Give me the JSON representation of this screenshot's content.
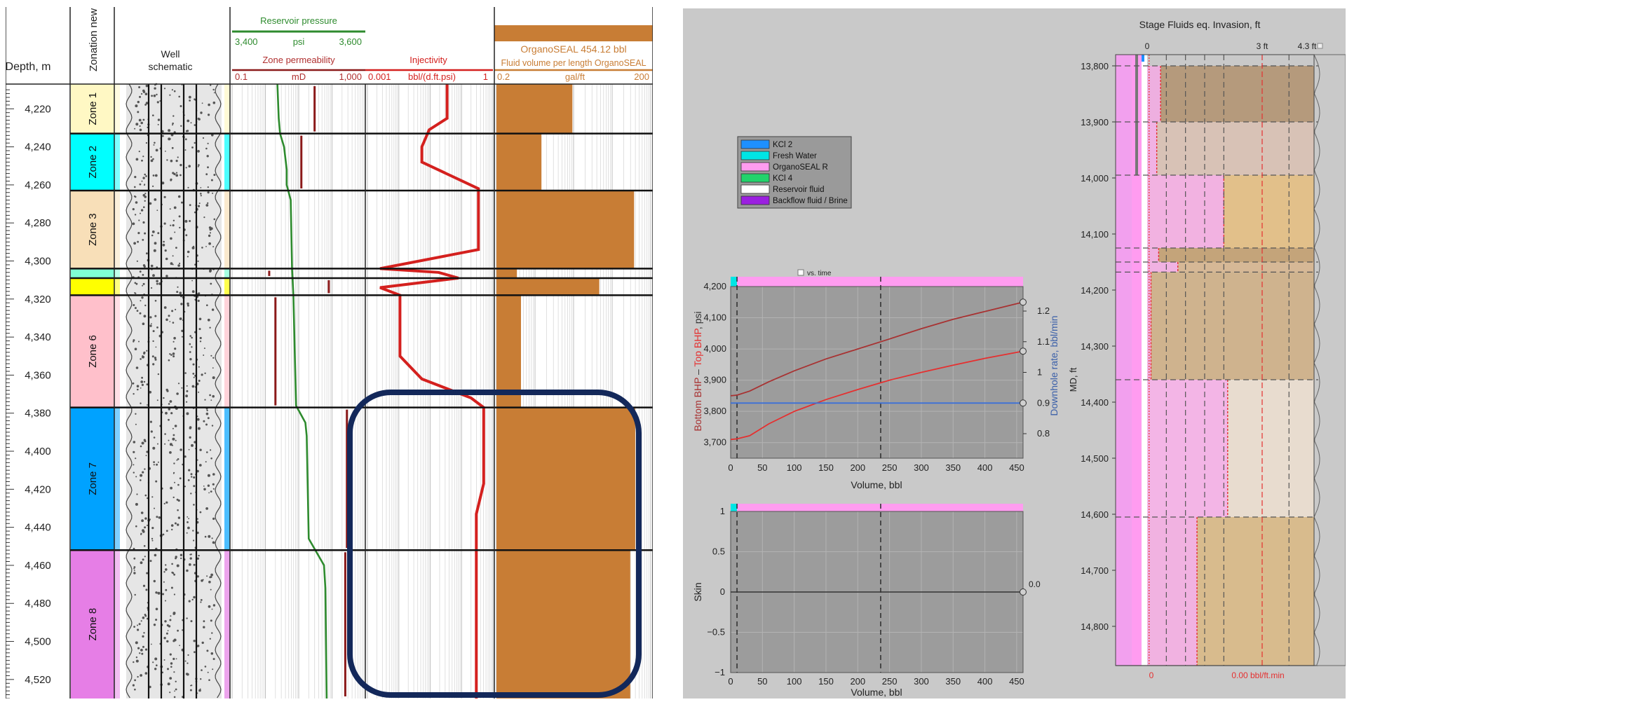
{
  "colors": {
    "green_curve": "#2e8b2e",
    "red_curve": "#d4201e",
    "dark_red": "#8b1a1a",
    "brown_fill": "#c87d35",
    "navy_highlight": "#13285a",
    "legend_kcl2": "#1e90ff",
    "legend_fresh_water": "#00e5e5",
    "legend_organoseal": "#ff9cf0",
    "legend_kcl4": "#22d36b",
    "legend_reservoir": "#ffffff",
    "legend_backflow": "#9b1fe0"
  },
  "well_log": {
    "headers": {
      "depth": "Depth, m",
      "zonation": "Zonation new",
      "schematic": "Well schematic",
      "pressure_title": "Reservoir pressure",
      "pressure_min": "3,400",
      "pressure_unit": "psi",
      "pressure_max": "3,600",
      "perm_title": "Zone permeability",
      "perm_min": "0.1",
      "perm_unit": "mD",
      "perm_max": "1,000",
      "inj_title": "Injectivity",
      "inj_min": "0.001",
      "inj_unit": "bbl/(d.ft.psi)",
      "inj_max": "1",
      "fluid_banner": "OrganoSEAL 454.12 bbl",
      "fluid_title": "Fluid volume per length OrganoSEAL",
      "fluid_min": "0.2",
      "fluid_unit": "gal/ft",
      "fluid_max": "200"
    },
    "depth_labels": [
      "4,220",
      "4,240",
      "4,260",
      "4,280",
      "4,300",
      "4,320",
      "4,340",
      "4,360",
      "4,380",
      "4,400",
      "4,420",
      "4,440",
      "4,460",
      "4,480",
      "4,500",
      "4,520"
    ],
    "zones": [
      {
        "label": "Zone 1",
        "top": 4207,
        "bottom": 4233,
        "color": "#fff8c4"
      },
      {
        "label": "Zone 2",
        "top": 4233,
        "bottom": 4263,
        "color": "#00ffff"
      },
      {
        "label": "Zone 3",
        "top": 4263,
        "bottom": 4304,
        "color": "#f8dfb8"
      },
      {
        "label": "",
        "top": 4304,
        "bottom": 4309,
        "color": "#7fffd4"
      },
      {
        "label": "",
        "top": 4309,
        "bottom": 4318,
        "color": "#ffff00"
      },
      {
        "label": "Zone 6",
        "top": 4318,
        "bottom": 4377,
        "color": "#ffc0cb"
      },
      {
        "label": "Zone 7",
        "top": 4377,
        "bottom": 4452,
        "color": "#00a2ff"
      },
      {
        "label": "Zone 8",
        "top": 4452,
        "bottom": 4530,
        "color": "#e67ee6"
      }
    ],
    "injectivity_profile": [
      {
        "depth": 4207,
        "value": 0.08
      },
      {
        "depth": 4225,
        "value": 0.08
      },
      {
        "depth": 4231,
        "value": 0.03
      },
      {
        "depth": 4240,
        "value": 0.02
      },
      {
        "depth": 4248,
        "value": 0.02
      },
      {
        "depth": 4262,
        "value": 0.45
      },
      {
        "depth": 4294,
        "value": 0.45
      },
      {
        "depth": 4304,
        "value": 0.002
      },
      {
        "depth": 4306,
        "value": 0.05
      },
      {
        "depth": 4309,
        "value": 0.15
      },
      {
        "depth": 4314,
        "value": 0.002
      },
      {
        "depth": 4318,
        "value": 0.006
      },
      {
        "depth": 4350,
        "value": 0.006
      },
      {
        "depth": 4362,
        "value": 0.02
      },
      {
        "depth": 4372,
        "value": 0.3
      },
      {
        "depth": 4377,
        "value": 0.6
      },
      {
        "depth": 4417,
        "value": 0.6
      },
      {
        "depth": 4433,
        "value": 0.4
      },
      {
        "depth": 4530,
        "value": 0.4
      }
    ],
    "pressure_profile": [
      {
        "depth": 4207,
        "value": 3468
      },
      {
        "depth": 4225,
        "value": 3470
      },
      {
        "depth": 4233,
        "value": 3472
      },
      {
        "depth": 4240,
        "value": 3478
      },
      {
        "depth": 4252,
        "value": 3482
      },
      {
        "depth": 4260,
        "value": 3482
      },
      {
        "depth": 4268,
        "value": 3488
      },
      {
        "depth": 4304,
        "value": 3490
      },
      {
        "depth": 4318,
        "value": 3492
      },
      {
        "depth": 4376,
        "value": 3496
      },
      {
        "depth": 4385,
        "value": 3510
      },
      {
        "depth": 4392,
        "value": 3512
      },
      {
        "depth": 4446,
        "value": 3515
      },
      {
        "depth": 4460,
        "value": 3538
      },
      {
        "depth": 4472,
        "value": 3540
      },
      {
        "depth": 4530,
        "value": 3542
      }
    ],
    "permeability_bars": [
      {
        "top": 4207,
        "bottom": 4233,
        "value": 30
      },
      {
        "top": 4233,
        "bottom": 4263,
        "value": 12
      },
      {
        "top": 4304,
        "bottom": 4309,
        "value": 1.3
      },
      {
        "top": 4309,
        "bottom": 4318,
        "value": 80
      },
      {
        "top": 4318,
        "bottom": 4377,
        "value": 2
      },
      {
        "top": 4377,
        "bottom": 4452,
        "value": 280
      },
      {
        "top": 4452,
        "bottom": 4530,
        "value": 250
      }
    ],
    "fluid_volume_blocks": [
      {
        "top": 4207,
        "bottom": 4233,
        "value": 6
      },
      {
        "top": 4233,
        "bottom": 4263,
        "value": 1.5
      },
      {
        "top": 4263,
        "bottom": 4304,
        "value": 95
      },
      {
        "top": 4304,
        "bottom": 4309,
        "value": 0.5
      },
      {
        "top": 4309,
        "bottom": 4318,
        "value": 20
      },
      {
        "top": 4318,
        "bottom": 4377,
        "value": 0.6
      },
      {
        "top": 4377,
        "bottom": 4452,
        "value": 100
      },
      {
        "top": 4452,
        "bottom": 4530,
        "value": 80
      }
    ]
  },
  "legend": [
    {
      "label": "KCl 2",
      "color": "#1e90ff"
    },
    {
      "label": "Fresh Water",
      "color": "#00e5e5"
    },
    {
      "label": "OrganoSEAL R",
      "color": "#ff9cf0"
    },
    {
      "label": "KCl 4",
      "color": "#22d36b"
    },
    {
      "label": "Reservoir fluid",
      "color": "#ffffff"
    },
    {
      "label": "Backflow fluid / Brine",
      "color": "#9b1fe0"
    }
  ],
  "bhp_plot": {
    "checkbox_label": "vs. time",
    "xlabel": "Volume, bbl",
    "ylabel_part1": "Bottom BHP",
    "ylabel_sep": " – ",
    "ylabel_part2": "Top BHP",
    "ylabel_unit": ", psi",
    "y2label": "Downhole rate, bbl/min",
    "x_ticks": [
      "0",
      "50",
      "100",
      "150",
      "200",
      "250",
      "300",
      "350",
      "400",
      "450"
    ],
    "y_ticks": [
      "3,700",
      "3,800",
      "3,900",
      "4,000",
      "4,100",
      "4,200"
    ],
    "y2_ticks": [
      "0.8",
      "0.9",
      "1",
      "1.1",
      "1.2"
    ]
  },
  "skin_plot": {
    "xlabel": "Volume, bbl",
    "ylabel": "Skin",
    "x_ticks": [
      "0",
      "50",
      "100",
      "150",
      "200",
      "250",
      "300",
      "350",
      "400",
      "450"
    ],
    "y_ticks": [
      "1",
      "0.5",
      "0",
      "−0.5",
      "−1"
    ],
    "end_value": "0.0"
  },
  "chart_data": [
    {
      "type": "line",
      "xlabel": "Volume, bbl",
      "ylabel": "Bottom BHP – Top BHP, psi",
      "xlim": [
        0,
        460
      ],
      "ylim": [
        3650,
        4200
      ],
      "y2lim": [
        0.72,
        1.28
      ],
      "series": [
        {
          "name": "Bottom BHP",
          "axis": "left",
          "x": [
            0,
            10,
            30,
            60,
            100,
            150,
            200,
            250,
            300,
            350,
            400,
            460
          ],
          "y": [
            3850,
            3852,
            3865,
            3895,
            3930,
            3968,
            4000,
            4032,
            4065,
            4095,
            4120,
            4150
          ]
        },
        {
          "name": "Top BHP",
          "axis": "left",
          "x": [
            0,
            10,
            30,
            60,
            100,
            150,
            200,
            250,
            300,
            350,
            400,
            460
          ],
          "y": [
            3710,
            3712,
            3722,
            3760,
            3800,
            3838,
            3870,
            3900,
            3925,
            3948,
            3970,
            3993
          ]
        },
        {
          "name": "Downhole rate",
          "axis": "right",
          "x": [
            0,
            460
          ],
          "y": [
            0.9,
            0.9
          ]
        }
      ],
      "vlines": [
        10,
        236
      ]
    },
    {
      "type": "line",
      "xlabel": "Volume, bbl",
      "ylabel": "Skin",
      "xlim": [
        0,
        460
      ],
      "ylim": [
        -1,
        1
      ],
      "series": [
        {
          "name": "Skin",
          "x": [
            0,
            460
          ],
          "y": [
            0,
            0
          ]
        }
      ],
      "vlines": [
        10,
        236
      ]
    }
  ],
  "invasion": {
    "title": "Stage Fluids eq. Invasion, ft",
    "scale_0": "0",
    "scale_3": "3 ft",
    "scale_43": "4.3 ft",
    "ylabel": "MD, ft",
    "md_labels": [
      "13,800",
      "13,900",
      "14,000",
      "14,100",
      "14,200",
      "14,300",
      "14,400",
      "14,500",
      "14,600",
      "14,700",
      "14,800"
    ],
    "bottom_left": "0",
    "bottom_right": "0.00 bbl/ft.min",
    "layers": [
      {
        "top": 13800,
        "bottom": 13900,
        "pink": 0.35,
        "rock": "#b59a7c"
      },
      {
        "top": 13900,
        "bottom": 13995,
        "pink": 0.25,
        "rock": "#d8c2b6"
      },
      {
        "top": 13995,
        "bottom": 14125,
        "pink": 2.0,
        "rock": "#e2c08a"
      },
      {
        "top": 14125,
        "bottom": 14150,
        "pink": 0.3,
        "rock": "#c4a47a"
      },
      {
        "top": 14150,
        "bottom": 14168,
        "pink": 0.8,
        "rock": "#d6b896"
      },
      {
        "top": 14168,
        "bottom": 14360,
        "pink": 0.1,
        "rock": "#cfb38e"
      },
      {
        "top": 14360,
        "bottom": 14605,
        "pink": 2.1,
        "rock": "#e8dccf"
      },
      {
        "top": 14605,
        "bottom": 14870,
        "pink": 1.3,
        "rock": "#d8bb8d"
      }
    ]
  }
}
